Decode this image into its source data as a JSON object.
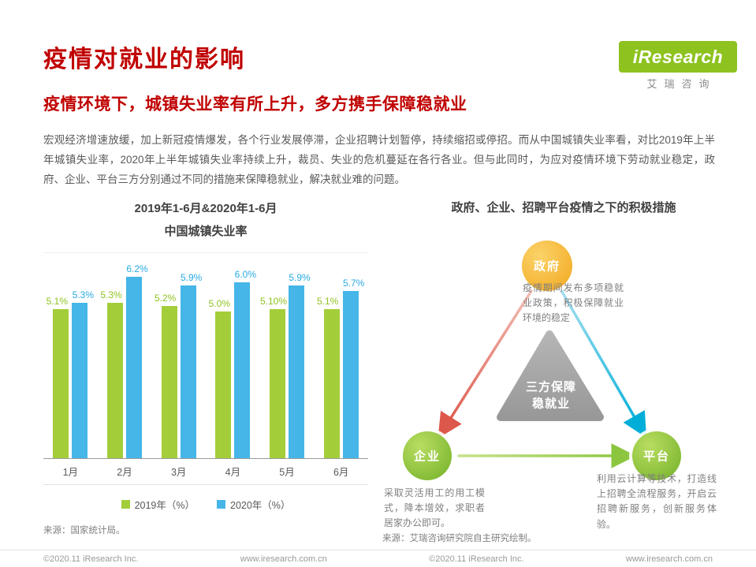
{
  "page": {
    "title": "疫情对就业的影响",
    "subtitle": "疫情环境下，城镇失业率有所上升，多方携手保障稳就业",
    "body": "宏观经济增速放缓，加上新冠疫情爆发，各个行业发展停滞，企业招聘计划暂停，持续缩招或停招。而从中国城镇失业率看，对比2019年上半年城镇失业率，2020年上半年城镇失业率持续上升，裁员、失业的危机蔓延在各行各业。但与此同时，为应对疫情环境下劳动就业稳定，政府、企业、平台三方分别通过不同的措施来保障稳就业，解决就业难的问题。"
  },
  "logo": {
    "brand": "iResearch",
    "brand_cn": "艾瑞咨询"
  },
  "chart_data": {
    "type": "bar",
    "title_line1": "2019年1-6月&2020年1-6月",
    "title_line2": "中国城镇失业率",
    "categories": [
      "1月",
      "2月",
      "3月",
      "4月",
      "5月",
      "6月"
    ],
    "series": [
      {
        "name": "2019年（%）",
        "color": "#a3ce39",
        "label_color": "#8fc31f",
        "values": [
          5.1,
          5.3,
          5.2,
          5.0,
          5.1,
          5.1
        ],
        "labels": [
          "5.1%",
          "5.3%",
          "5.2%",
          "5.0%",
          "5.10%",
          "5.1%"
        ]
      },
      {
        "name": "2020年（%）",
        "color": "#45b6e7",
        "label_color": "#29abe2",
        "values": [
          5.3,
          6.2,
          5.9,
          6.0,
          5.9,
          5.7
        ],
        "labels": [
          "5.3%",
          "6.2%",
          "5.9%",
          "6.0%",
          "5.9%",
          "5.7%"
        ]
      }
    ],
    "ylim": [
      0,
      7
    ],
    "grid": "baseline-only",
    "legend_position": "bottom",
    "source": "来源：国家统计局。"
  },
  "diagram": {
    "title": "政府、企业、招聘平台疫情之下的积极措施",
    "center_line1": "三方保障",
    "center_line2": "稳就业",
    "nodes": [
      {
        "id": "gov",
        "label": "政府",
        "desc": "疫情期间发布多项稳就业政策，积极保障就业环境的稳定"
      },
      {
        "id": "ent",
        "label": "企业",
        "desc": "采取灵活用工的用工模式，降本增效，求职者居家办公即可。"
      },
      {
        "id": "plat",
        "label": "平台",
        "desc": "利用云计算等技术，打造线上招聘全流程服务，开启云招聘新服务，创新服务体验。"
      }
    ],
    "source": "来源：艾瑞咨询研究院自主研究绘制。"
  },
  "colors": {
    "accent_red": "#c00000",
    "brand_green": "#8dc21f",
    "node_gold": "#f2a921",
    "node_green": "#76b32a",
    "arrow_red": "#dd574a",
    "arrow_cyan": "#00aed8",
    "arrow_green": "#8cc63f"
  },
  "footer": {
    "copyright": "©2020.11 iResearch Inc.",
    "website": "www.iresearch.com.cn"
  }
}
